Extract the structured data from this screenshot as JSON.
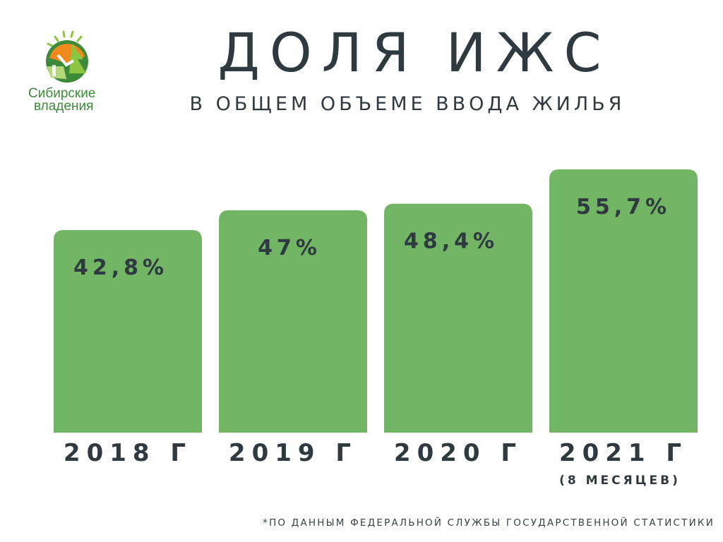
{
  "brand": {
    "name_line1": "Сибирские",
    "name_line2": "владения",
    "colors": {
      "green": "#3d8a3a",
      "light_green": "#8cc641",
      "orange": "#f08a1c"
    }
  },
  "footnote": "*ПО ДАННЫМ ФЕДЕРАЛЬНОЙ СЛУЖБЫ ГОСУДАРСТВЕННОЙ СТАТИСТИКИ",
  "chart_data": {
    "type": "bar",
    "title": "ДОЛЯ ИЖС",
    "subtitle": "В ОБЩЕМ ОБЪЕМЕ ВВОДА ЖИЛЬЯ",
    "categories": [
      "2018 Г",
      "2019 Г",
      "2020 Г",
      "2021 Г"
    ],
    "category_notes": [
      "",
      "",
      "",
      "(8 МЕСЯЦЕВ)"
    ],
    "values": [
      42.8,
      47,
      48.4,
      55.7
    ],
    "value_labels": [
      "42,8%",
      "47%",
      "48,4%",
      "55,7%"
    ],
    "bar_color": "#72b564",
    "grid": false,
    "legend": "none"
  }
}
